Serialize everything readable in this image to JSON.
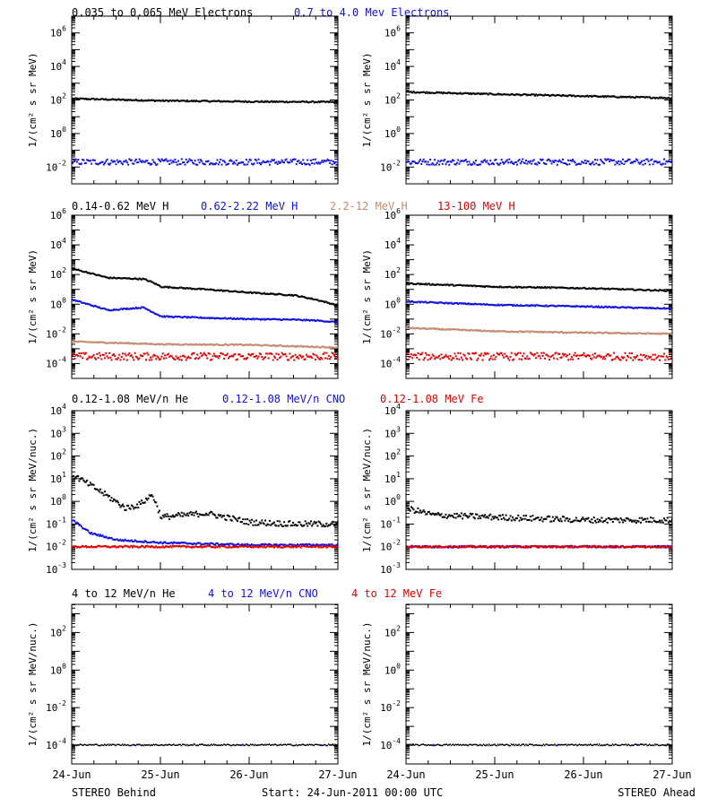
{
  "colors": {
    "black": "#000000",
    "blue": "#1010e0",
    "tan": "#c58a70",
    "red": "#e00000"
  },
  "footer": {
    "left": "STEREO Behind",
    "center": "Start: 24-Jun-2011 00:00 UTC",
    "right": "STEREO Ahead"
  },
  "x_ticks": [
    "24-Jun",
    "25-Jun",
    "26-Jun",
    "27-Jun"
  ],
  "chart_data": [
    {
      "type": "scatter",
      "row": "electrons",
      "titles": [
        {
          "text": "0.035 to 0.065 MeV Electrons",
          "color": "#000000"
        },
        {
          "text": "0.7 to 4.0 Mev Electrons",
          "color": "#1010e0"
        }
      ],
      "ylabel": "1/(cm² s sr MeV)",
      "yscale": "log",
      "ylim_exp": [
        -3,
        7
      ],
      "ytick_exps": [
        -2,
        0,
        2,
        4,
        6
      ],
      "xlim_days": [
        0,
        3
      ],
      "panels": [
        {
          "label": "STEREO Behind",
          "series": [
            {
              "color": "#000000",
              "x": [
                0,
                1,
                2,
                3
              ],
              "y": [
                120,
                90,
                80,
                75
              ]
            },
            {
              "color": "#1010e0",
              "x": [
                0,
                1,
                2,
                3
              ],
              "y": [
                0.02,
                0.02,
                0.02,
                0.02
              ]
            }
          ]
        },
        {
          "label": "STEREO Ahead",
          "series": [
            {
              "color": "#000000",
              "x": [
                0,
                1,
                2,
                3
              ],
              "y": [
                300,
                220,
                170,
                130
              ]
            },
            {
              "color": "#1010e0",
              "x": [
                0,
                1,
                2,
                3
              ],
              "y": [
                0.02,
                0.02,
                0.02,
                0.02
              ]
            }
          ]
        }
      ]
    },
    {
      "type": "scatter",
      "row": "protons",
      "titles": [
        {
          "text": "0.14-0.62 MeV H",
          "color": "#000000"
        },
        {
          "text": "0.62-2.22 MeV H",
          "color": "#1010e0"
        },
        {
          "text": "2.2-12 MeV H",
          "color": "#c58a70"
        },
        {
          "text": "13-100 MeV H",
          "color": "#e00000"
        }
      ],
      "ylabel": "1/(cm² s sr MeV)",
      "yscale": "log",
      "ylim_exp": [
        -5,
        6
      ],
      "ytick_exps": [
        -4,
        -2,
        0,
        2,
        4,
        6
      ],
      "xlim_days": [
        0,
        3
      ],
      "panels": [
        {
          "label": "STEREO Behind",
          "series": [
            {
              "color": "#000000",
              "x": [
                0,
                0.4,
                0.8,
                0.9,
                1.0,
                1.5,
                2.0,
                2.5,
                2.75,
                3
              ],
              "y": [
                250,
                60,
                50,
                30,
                15,
                10,
                6,
                4,
                2,
                0.8
              ]
            },
            {
              "color": "#1010e0",
              "x": [
                0,
                0.4,
                0.8,
                0.9,
                1.0,
                1.5,
                2.0,
                2.5,
                2.75,
                3
              ],
              "y": [
                2,
                0.4,
                0.6,
                0.3,
                0.15,
                0.12,
                0.1,
                0.09,
                0.08,
                0.06
              ]
            },
            {
              "color": "#c58a70",
              "x": [
                0,
                1,
                2,
                3
              ],
              "y": [
                0.003,
                0.002,
                0.0018,
                0.0012
              ]
            },
            {
              "color": "#e00000",
              "x": [
                0,
                1,
                2,
                3
              ],
              "y": [
                0.0003,
                0.0003,
                0.0003,
                0.0003
              ]
            }
          ]
        },
        {
          "label": "STEREO Ahead",
          "series": [
            {
              "color": "#000000",
              "x": [
                0,
                1,
                2,
                3
              ],
              "y": [
                25,
                15,
                12,
                8
              ]
            },
            {
              "color": "#1010e0",
              "x": [
                0,
                1,
                2,
                3
              ],
              "y": [
                1.5,
                0.9,
                0.7,
                0.5
              ]
            },
            {
              "color": "#c58a70",
              "x": [
                0,
                1,
                2,
                3
              ],
              "y": [
                0.025,
                0.015,
                0.012,
                0.01
              ]
            },
            {
              "color": "#e00000",
              "x": [
                0,
                1,
                2,
                3
              ],
              "y": [
                0.0003,
                0.0003,
                0.0003,
                0.0003
              ]
            }
          ]
        }
      ]
    },
    {
      "type": "scatter",
      "row": "heavy_ions_low",
      "titles": [
        {
          "text": "0.12-1.08 MeV/n He",
          "color": "#000000"
        },
        {
          "text": "0.12-1.08 MeV/n CNO",
          "color": "#1010e0"
        },
        {
          "text": "0.12-1.08 MeV Fe",
          "color": "#e00000"
        }
      ],
      "ylabel": "1/(cm² s sr MeV/nuc.)",
      "yscale": "log",
      "ylim_exp": [
        -3,
        4
      ],
      "ytick_exps": [
        -3,
        -2,
        -1,
        0,
        1,
        2,
        3,
        4
      ],
      "xlim_days": [
        0,
        3
      ],
      "panels": [
        {
          "label": "STEREO Behind",
          "series": [
            {
              "color": "#000000",
              "x": [
                0,
                0.3,
                0.6,
                0.75,
                0.9,
                1.0,
                1.5,
                2.0,
                2.5,
                3
              ],
              "y": [
                15,
                3,
                0.5,
                0.7,
                2,
                0.2,
                0.3,
                0.12,
                0.1,
                0.1
              ]
            },
            {
              "color": "#1010e0",
              "x": [
                0,
                0.2,
                0.5,
                1.0,
                2.0,
                3
              ],
              "y": [
                0.15,
                0.04,
                0.02,
                0.015,
                0.012,
                0.012
              ]
            },
            {
              "color": "#e00000",
              "x": [
                0,
                1,
                2,
                3
              ],
              "y": [
                0.01,
                0.01,
                0.01,
                0.01
              ]
            }
          ]
        },
        {
          "label": "STEREO Ahead",
          "series": [
            {
              "color": "#000000",
              "x": [
                0,
                0.3,
                1.0,
                2.0,
                3
              ],
              "y": [
                0.5,
                0.25,
                0.2,
                0.15,
                0.15
              ]
            },
            {
              "color": "#1010e0",
              "x": [
                0,
                1,
                2,
                3
              ],
              "y": [
                0.01,
                0.01,
                0.01,
                0.01
              ]
            },
            {
              "color": "#e00000",
              "x": [
                0,
                1,
                2,
                3
              ],
              "y": [
                0.01,
                0.01,
                0.01,
                0.01
              ]
            }
          ]
        }
      ]
    },
    {
      "type": "scatter",
      "row": "heavy_ions_high",
      "titles": [
        {
          "text": "4 to 12 MeV/n He",
          "color": "#000000"
        },
        {
          "text": "4 to 12 MeV/n CNO",
          "color": "#1010e0"
        },
        {
          "text": "4 to 12 MeV Fe",
          "color": "#e00000"
        }
      ],
      "ylabel": "1/(cm² s sr MeV/nuc.)",
      "yscale": "log",
      "ylim_exp": [
        -5,
        3.5
      ],
      "ytick_exps": [
        -4,
        -2,
        0,
        2
      ],
      "xlim_days": [
        0,
        3
      ],
      "panels": [
        {
          "label": "STEREO Behind",
          "series": [
            {
              "color": "#000000",
              "x": [
                0,
                1,
                2,
                3
              ],
              "y": [
                0.0001,
                0.0001,
                0.0001,
                0.0001
              ]
            },
            {
              "color": "#1010e0",
              "x": [
                0.7,
                1.9,
                2.8
              ],
              "y": [
                0.0001,
                0.0001,
                0.0001
              ]
            }
          ]
        },
        {
          "label": "STEREO Ahead",
          "series": [
            {
              "color": "#000000",
              "x": [
                0,
                1,
                2,
                3
              ],
              "y": [
                0.0001,
                0.0001,
                0.0001,
                0.0001
              ]
            },
            {
              "color": "#1010e0",
              "x": [
                0.3,
                1.7,
                2.6
              ],
              "y": [
                0.0001,
                0.0001,
                0.0001
              ]
            }
          ]
        }
      ]
    }
  ]
}
